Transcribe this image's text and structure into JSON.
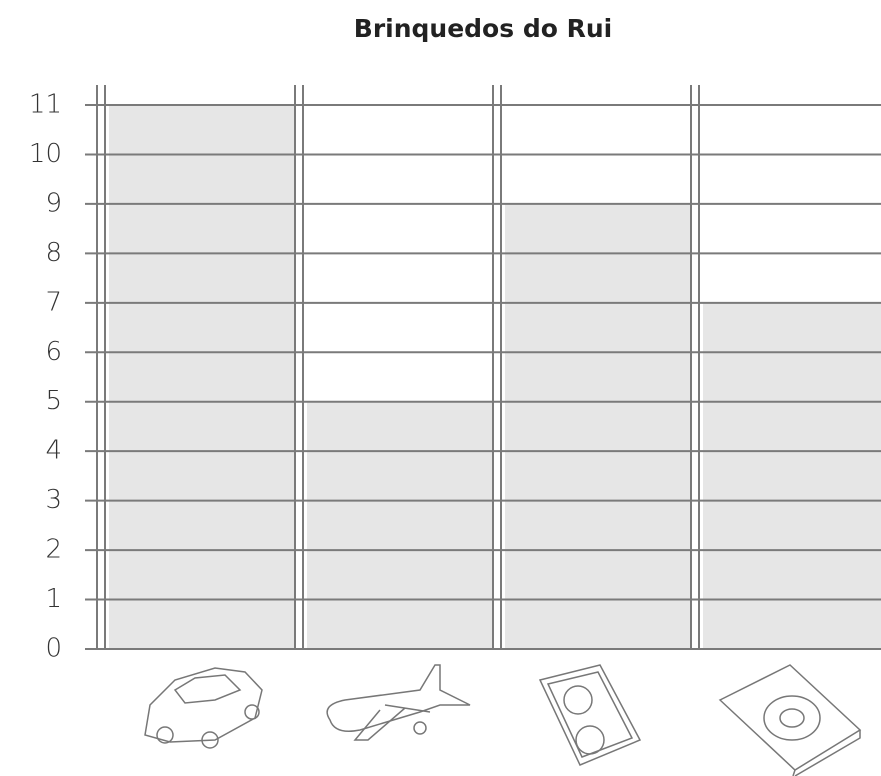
{
  "chart_data": {
    "type": "bar",
    "title": "Brinquedos do Rui",
    "categories": [
      null,
      null,
      null,
      null
    ],
    "values": [
      11,
      5,
      9,
      7
    ],
    "color": "#e6e6e6",
    "ylim": [
      0,
      11
    ],
    "yticks": [
      0,
      1,
      2,
      3,
      4,
      5,
      6,
      7,
      8,
      9,
      10,
      11
    ],
    "grid": true
  }
}
